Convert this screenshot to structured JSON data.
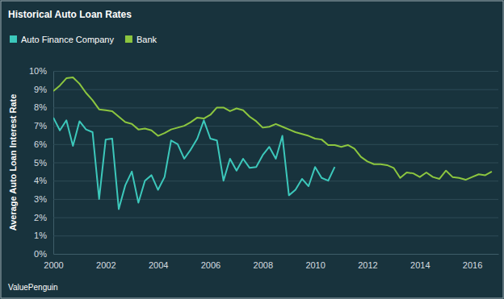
{
  "chart_data": {
    "type": "line",
    "title": "Historical Auto Loan Rates",
    "y_label": "Average Auto Loan Interest Rate",
    "source": "ValuePenguin",
    "legend": "top-left",
    "grid": true,
    "x": [
      2000,
      2000.25,
      2000.5,
      2000.75,
      2001,
      2001.25,
      2001.5,
      2001.75,
      2002,
      2002.25,
      2002.5,
      2002.75,
      2003,
      2003.25,
      2003.5,
      2003.75,
      2004,
      2004.25,
      2004.5,
      2004.75,
      2005,
      2005.25,
      2005.5,
      2005.75,
      2006,
      2006.25,
      2006.5,
      2006.75,
      2007,
      2007.25,
      2007.5,
      2007.75,
      2008,
      2008.25,
      2008.5,
      2008.75,
      2009,
      2009.25,
      2009.5,
      2009.75,
      2010,
      2010.25,
      2010.5,
      2010.75,
      2011,
      2011.25,
      2011.5,
      2011.75,
      2012,
      2012.25,
      2012.5,
      2012.75,
      2013,
      2013.25,
      2013.5,
      2013.75,
      2014,
      2014.25,
      2014.5,
      2014.75,
      2015,
      2015.25,
      2015.5,
      2015.75,
      2016,
      2016.25,
      2016.5,
      2016.75
    ],
    "series": [
      {
        "name": "Auto Finance Company",
        "color": "#3cc8bb",
        "values": [
          7.45,
          6.75,
          7.3,
          5.9,
          7.25,
          6.8,
          6.65,
          3.0,
          6.25,
          6.3,
          2.45,
          3.75,
          4.5,
          2.8,
          4.0,
          4.3,
          3.5,
          4.2,
          6.2,
          6.0,
          5.2,
          5.7,
          6.3,
          7.3,
          6.3,
          6.2,
          4.0,
          5.2,
          4.55,
          5.2,
          4.7,
          4.75,
          5.4,
          5.85,
          5.2,
          6.45,
          3.2,
          3.5,
          4.1,
          3.7,
          4.75,
          4.15,
          4.0,
          4.75,
          null,
          null,
          null,
          null,
          null,
          null,
          null,
          null,
          null,
          null,
          null,
          null,
          null,
          null,
          null,
          null,
          null,
          null,
          null,
          null,
          null,
          null,
          null,
          null
        ]
      },
      {
        "name": "Bank",
        "color": "#8cc63f",
        "values": [
          8.9,
          9.2,
          9.6,
          9.65,
          9.3,
          8.8,
          8.4,
          7.9,
          7.85,
          7.8,
          7.5,
          7.2,
          7.1,
          6.8,
          6.85,
          6.75,
          6.45,
          6.6,
          6.8,
          6.9,
          7.0,
          7.2,
          7.45,
          7.4,
          7.6,
          8.0,
          8.0,
          7.8,
          7.95,
          7.85,
          7.5,
          7.25,
          6.9,
          6.95,
          7.1,
          6.95,
          6.8,
          6.65,
          6.55,
          6.45,
          6.3,
          6.25,
          5.95,
          5.95,
          5.85,
          5.95,
          5.75,
          5.3,
          5.05,
          4.9,
          4.9,
          4.85,
          4.7,
          4.15,
          4.45,
          4.4,
          4.2,
          4.45,
          4.2,
          4.1,
          4.55,
          4.2,
          4.15,
          4.05,
          4.2,
          4.35,
          4.3,
          4.5
        ]
      }
    ],
    "xlim": [
      2000,
      2017
    ],
    "xticks": [
      2000,
      2002,
      2004,
      2006,
      2008,
      2010,
      2012,
      2014,
      2016
    ],
    "ylim": [
      0,
      10
    ],
    "yticks": [
      {
        "value": 0,
        "label": "0%"
      },
      {
        "value": 1,
        "label": "1%"
      },
      {
        "value": 2,
        "label": "2%"
      },
      {
        "value": 3,
        "label": "3%"
      },
      {
        "value": 4,
        "label": "4%"
      },
      {
        "value": 5,
        "label": "5%"
      },
      {
        "value": 6,
        "label": "6%"
      },
      {
        "value": 7,
        "label": "7%"
      },
      {
        "value": 8,
        "label": "8%"
      },
      {
        "value": 9,
        "label": "9%"
      },
      {
        "value": 10,
        "label": "10%"
      }
    ]
  }
}
